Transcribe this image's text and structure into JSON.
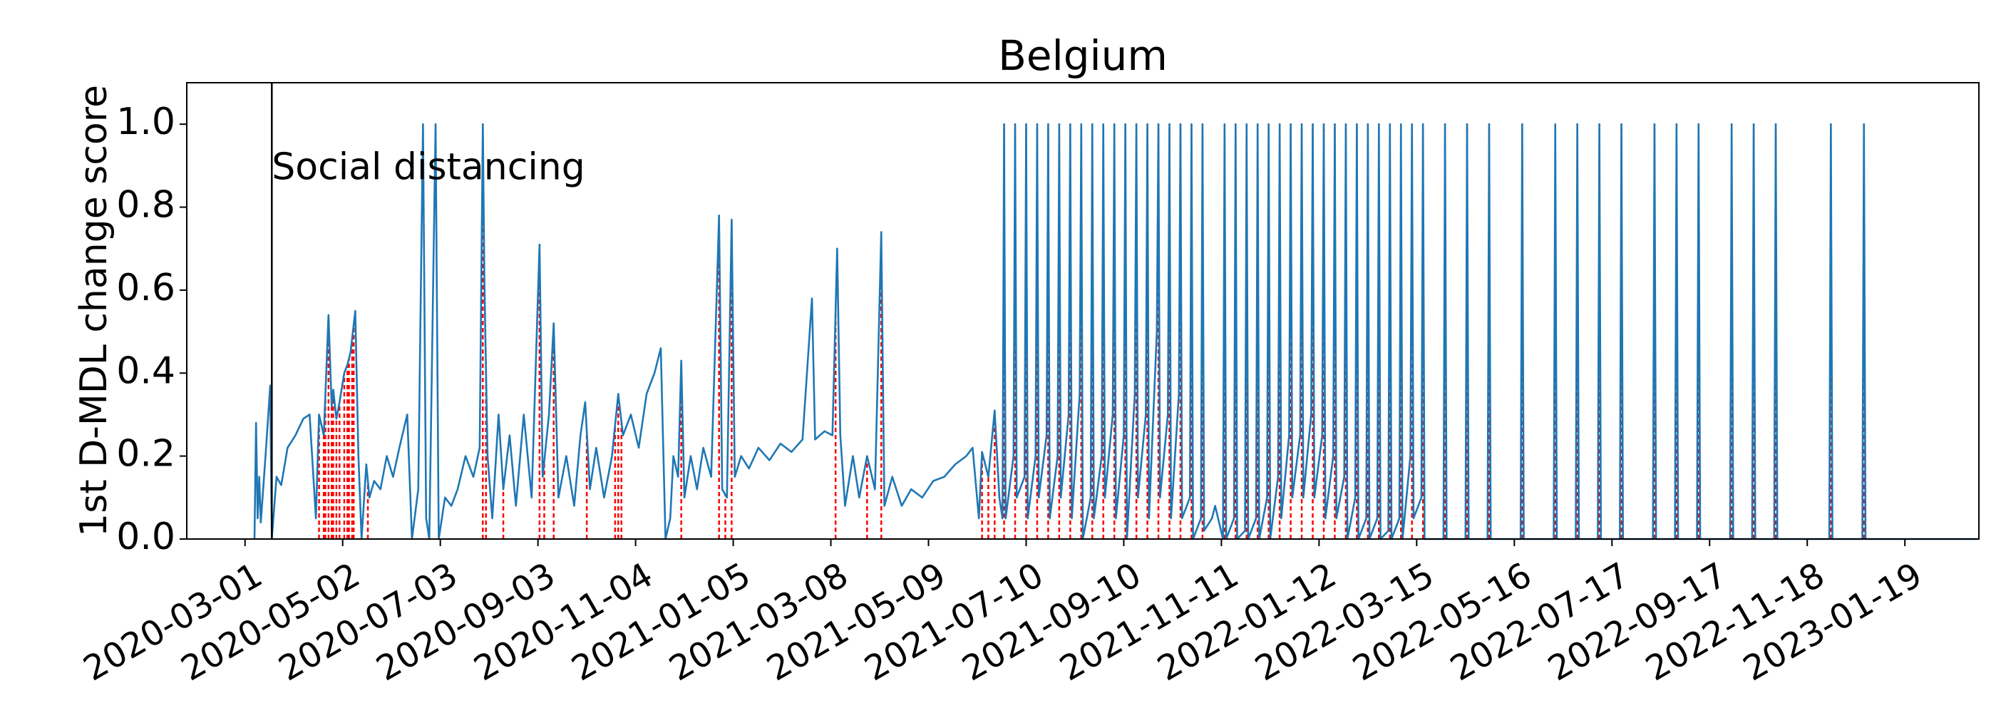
{
  "chart_data": {
    "type": "line",
    "title": "Belgium",
    "y_label": "1st D-MDL change score",
    "color": "#1f77b4",
    "change_point_color": "#ff0000",
    "event_color": "#000000",
    "events": [
      {
        "date": "2020-03-18",
        "label": "Social distancing"
      }
    ],
    "xlim": [
      "2020-01-24",
      "2023-03-07"
    ],
    "xticks": [
      "2020-03-01",
      "2020-05-02",
      "2020-07-03",
      "2020-09-03",
      "2020-11-04",
      "2021-01-05",
      "2021-03-08",
      "2021-05-09",
      "2021-07-10",
      "2021-09-10",
      "2021-11-11",
      "2022-01-12",
      "2022-03-15",
      "2022-05-16",
      "2022-07-17",
      "2022-09-17",
      "2022-11-18",
      "2023-01-19"
    ],
    "ylim": [
      0,
      1.1
    ],
    "yticks": [
      {
        "value": 0,
        "label": "0.0"
      },
      0.2,
      0.4,
      0.6,
      0.8,
      {
        "value": 1,
        "label": "1.0"
      }
    ],
    "x": [
      "2020-03-07",
      "2020-03-08",
      "2020-03-09",
      "2020-03-10",
      "2020-03-11",
      "2020-03-14",
      "2020-03-17",
      "2020-03-18",
      "2020-03-21",
      "2020-03-24",
      "2020-03-28",
      "2020-04-02",
      "2020-04-07",
      "2020-04-11",
      "2020-04-15",
      "2020-04-17",
      "2020-04-20",
      "2020-04-23",
      "2020-04-25",
      "2020-04-26",
      "2020-04-28",
      "2020-04-30",
      "2020-05-03",
      "2020-05-05",
      "2020-05-07",
      "2020-05-10",
      "2020-05-12",
      "2020-05-14",
      "2020-05-17",
      "2020-05-19",
      "2020-05-22",
      "2020-05-26",
      "2020-05-30",
      "2020-06-03",
      "2020-06-07",
      "2020-06-12",
      "2020-06-15",
      "2020-06-19",
      "2020-06-22",
      "2020-06-24",
      "2020-06-26",
      "2020-06-30",
      "2020-07-02",
      "2020-07-06",
      "2020-07-10",
      "2020-07-14",
      "2020-07-19",
      "2020-07-24",
      "2020-07-28",
      "2020-07-30",
      "2020-07-31",
      "2020-08-02",
      "2020-08-05",
      "2020-08-09",
      "2020-08-12",
      "2020-08-16",
      "2020-08-20",
      "2020-08-25",
      "2020-08-30",
      "2020-09-04",
      "2020-09-06",
      "2020-09-10",
      "2020-09-13",
      "2020-09-16",
      "2020-09-21",
      "2020-09-26",
      "2020-09-30",
      "2020-10-03",
      "2020-10-06",
      "2020-10-10",
      "2020-10-15",
      "2020-10-20",
      "2020-10-24",
      "2020-10-27",
      "2020-11-01",
      "2020-11-06",
      "2020-11-11",
      "2020-11-16",
      "2020-11-20",
      "2020-11-23",
      "2020-11-26",
      "2020-11-28",
      "2020-12-01",
      "2020-12-03",
      "2020-12-05",
      "2020-12-09",
      "2020-12-13",
      "2020-12-17",
      "2020-12-22",
      "2020-12-27",
      "2020-12-29",
      "2021-01-01",
      "2021-01-04",
      "2021-01-06",
      "2021-01-10",
      "2021-01-15",
      "2021-01-21",
      "2021-01-28",
      "2021-02-04",
      "2021-02-11",
      "2021-02-18",
      "2021-02-24",
      "2021-02-26",
      "2021-03-04",
      "2021-03-09",
      "2021-03-11",
      "2021-03-12",
      "2021-03-14",
      "2021-03-17",
      "2021-03-22",
      "2021-03-26",
      "2021-03-31",
      "2021-04-05",
      "2021-04-09",
      "2021-04-11",
      "2021-04-16",
      "2021-04-22",
      "2021-04-28",
      "2021-05-05",
      "2021-05-12",
      "2021-05-19",
      "2021-05-26",
      "2021-06-02",
      "2021-06-06",
      "2021-06-10",
      "2021-06-12",
      "2021-06-16",
      "2021-06-20",
      "2021-06-23",
      "2021-06-25",
      "2021-06-26",
      "2021-06-27",
      "2021-07-02",
      "2021-07-03",
      "2021-07-04",
      "2021-07-09",
      "2021-07-10",
      "2021-07-11",
      "2021-07-16",
      "2021-07-17",
      "2021-07-18",
      "2021-07-23",
      "2021-07-24",
      "2021-07-25",
      "2021-07-30",
      "2021-07-31",
      "2021-08-01",
      "2021-08-06",
      "2021-08-07",
      "2021-08-08",
      "2021-08-13",
      "2021-08-14",
      "2021-08-15",
      "2021-08-20",
      "2021-08-21",
      "2021-08-22",
      "2021-08-27",
      "2021-08-28",
      "2021-08-29",
      "2021-09-03",
      "2021-09-04",
      "2021-09-05",
      "2021-09-10",
      "2021-09-11",
      "2021-09-12",
      "2021-09-17",
      "2021-09-18",
      "2021-09-19",
      "2021-09-24",
      "2021-09-25",
      "2021-09-26",
      "2021-10-01",
      "2021-10-02",
      "2021-10-03",
      "2021-10-08",
      "2021-10-09",
      "2021-10-10",
      "2021-10-15",
      "2021-10-16",
      "2021-10-17",
      "2021-10-22",
      "2021-10-23",
      "2021-10-24",
      "2021-10-29",
      "2021-10-30",
      "2021-10-31",
      "2021-11-05",
      "2021-11-07",
      "2021-11-12",
      "2021-11-13",
      "2021-11-14",
      "2021-11-19",
      "2021-11-20",
      "2021-11-21",
      "2021-11-26",
      "2021-11-27",
      "2021-11-28",
      "2021-12-03",
      "2021-12-04",
      "2021-12-05",
      "2021-12-10",
      "2021-12-11",
      "2021-12-12",
      "2021-12-17",
      "2021-12-18",
      "2021-12-19",
      "2021-12-24",
      "2021-12-25",
      "2021-12-26",
      "2021-12-31",
      "2022-01-01",
      "2022-01-02",
      "2022-01-07",
      "2022-01-08",
      "2022-01-09",
      "2022-01-14",
      "2022-01-15",
      "2022-01-16",
      "2022-01-21",
      "2022-01-22",
      "2022-01-23",
      "2022-01-28",
      "2022-01-29",
      "2022-01-30",
      "2022-02-04",
      "2022-02-05",
      "2022-02-06",
      "2022-02-11",
      "2022-02-12",
      "2022-02-13",
      "2022-02-18",
      "2022-02-19",
      "2022-02-20",
      "2022-02-25",
      "2022-02-26",
      "2022-02-27",
      "2022-03-04",
      "2022-03-05",
      "2022-03-06",
      "2022-03-11",
      "2022-03-12",
      "2022-03-13",
      "2022-03-18",
      "2022-03-19",
      "2022-03-20",
      "2022-04-01",
      "2022-04-02",
      "2022-04-03",
      "2022-04-15",
      "2022-04-16",
      "2022-04-17",
      "2022-04-29",
      "2022-04-30",
      "2022-05-01",
      "2022-05-20",
      "2022-05-21",
      "2022-05-22",
      "2022-06-10",
      "2022-06-11",
      "2022-06-12",
      "2022-06-24",
      "2022-06-25",
      "2022-06-26",
      "2022-07-08",
      "2022-07-09",
      "2022-07-10",
      "2022-07-22",
      "2022-07-23",
      "2022-07-24",
      "2022-08-12",
      "2022-08-13",
      "2022-08-14",
      "2022-08-26",
      "2022-08-27",
      "2022-08-28",
      "2022-09-09",
      "2022-09-10",
      "2022-09-11",
      "2022-09-30",
      "2022-10-01",
      "2022-10-02",
      "2022-10-14",
      "2022-10-15",
      "2022-10-16",
      "2022-10-28",
      "2022-10-29",
      "2022-10-30",
      "2022-12-02",
      "2022-12-03",
      "2022-12-04",
      "2022-12-23",
      "2022-12-24",
      "2022-12-25",
      "2023-03-06"
    ],
    "values": [
      0,
      0.28,
      0.05,
      0.15,
      0.04,
      0.2,
      0.37,
      0,
      0.15,
      0.13,
      0.22,
      0.25,
      0.29,
      0.3,
      0.05,
      0.3,
      0.25,
      0.54,
      0.32,
      0.36,
      0.29,
      0.33,
      0.4,
      0.42,
      0.45,
      0.55,
      0.2,
      0,
      0.18,
      0.1,
      0.14,
      0.12,
      0.2,
      0.15,
      0.22,
      0.3,
      0,
      0.12,
      1,
      0.05,
      0,
      1,
      0,
      0.1,
      0.08,
      0.12,
      0.2,
      0.15,
      0.22,
      1,
      0.62,
      0.2,
      0.05,
      0.3,
      0.12,
      0.25,
      0.08,
      0.3,
      0.1,
      0.71,
      0.15,
      0.3,
      0.52,
      0.1,
      0.2,
      0.08,
      0.25,
      0.33,
      0.12,
      0.22,
      0.1,
      0.2,
      0.35,
      0.25,
      0.3,
      0.22,
      0.35,
      0.4,
      0.46,
      0,
      0.05,
      0.2,
      0.15,
      0.43,
      0.1,
      0.2,
      0.12,
      0.22,
      0.15,
      0.78,
      0.12,
      0.1,
      0.77,
      0.15,
      0.2,
      0.17,
      0.22,
      0.19,
      0.23,
      0.21,
      0.24,
      0.58,
      0.24,
      0.26,
      0.25,
      0.55,
      0.7,
      0.25,
      0.08,
      0.2,
      0.1,
      0.2,
      0.12,
      0.74,
      0.08,
      0.15,
      0.08,
      0.12,
      0.1,
      0.14,
      0.15,
      0.18,
      0.2,
      0.22,
      0.05,
      0.21,
      0.15,
      0.31,
      0.1,
      0.05,
      1,
      0.05,
      0.2,
      1,
      0.1,
      0.15,
      1,
      0.05,
      0.2,
      1,
      0.1,
      0.25,
      1,
      0.05,
      0.2,
      1,
      0.1,
      0.3,
      1,
      0.05,
      0.35,
      1,
      0,
      0.1,
      1,
      0.05,
      0.2,
      1,
      0.1,
      0.3,
      1,
      0.05,
      0.25,
      1,
      0,
      0.35,
      1,
      0.1,
      0.3,
      1,
      0.05,
      0.5,
      1,
      0.1,
      0.3,
      1,
      0.05,
      0.35,
      1,
      0.05,
      0.1,
      1,
      0,
      0.05,
      1,
      0.02,
      0.05,
      0.08,
      0,
      1,
      0,
      0.05,
      1,
      0,
      0.02,
      1,
      0,
      0.05,
      1,
      0,
      0.1,
      1,
      0,
      0.15,
      1,
      0.05,
      0.25,
      1,
      0.1,
      0.25,
      1,
      0.1,
      0.3,
      1,
      0.1,
      0.25,
      1,
      0.05,
      0.2,
      1,
      0.05,
      0.15,
      1,
      0,
      0.1,
      1,
      0,
      0.05,
      1,
      0,
      0.05,
      1,
      0,
      0.02,
      1,
      0,
      0.05,
      1,
      0,
      0.2,
      1,
      0.05,
      0.1,
      1,
      0,
      0,
      1,
      0,
      0,
      1,
      0,
      0,
      1,
      0,
      0,
      1,
      0,
      0,
      1,
      0,
      0,
      1,
      0,
      0,
      1,
      0,
      0,
      1,
      0,
      0,
      1,
      0,
      0,
      1,
      0,
      0,
      1,
      0,
      0,
      1,
      0,
      0,
      1,
      0,
      0,
      1,
      0,
      0,
      1,
      0,
      0,
      1,
      0,
      0
    ],
    "change_points": [
      "2020-04-17",
      "2020-04-20",
      "2020-04-21",
      "2020-04-23",
      "2020-04-25",
      "2020-04-26",
      "2020-04-28",
      "2020-04-30",
      "2020-05-03",
      "2020-05-05",
      "2020-05-06",
      "2020-05-08",
      "2020-05-09",
      "2020-05-18",
      "2020-07-30",
      "2020-08-01",
      "2020-08-12",
      "2020-09-04",
      "2020-09-07",
      "2020-09-13",
      "2020-10-04",
      "2020-10-22",
      "2020-10-24",
      "2020-10-26",
      "2020-12-03",
      "2020-12-27",
      "2020-12-31",
      "2021-01-04",
      "2021-03-11",
      "2021-03-31",
      "2021-04-09",
      "2021-06-12",
      "2021-06-16",
      "2021-06-20",
      "2021-06-26",
      "2021-07-03",
      "2021-07-10",
      "2021-07-17",
      "2021-07-24",
      "2021-07-31",
      "2021-08-07",
      "2021-08-14",
      "2021-08-21",
      "2021-08-28",
      "2021-09-04",
      "2021-09-11",
      "2021-09-18",
      "2021-09-25",
      "2021-10-02",
      "2021-10-09",
      "2021-10-16",
      "2021-10-23",
      "2021-10-30",
      "2021-11-13",
      "2021-11-20",
      "2021-11-27",
      "2021-12-04",
      "2021-12-11",
      "2021-12-18",
      "2021-12-25",
      "2022-01-01",
      "2022-01-08",
      "2022-01-15",
      "2022-01-22",
      "2022-01-29",
      "2022-02-05",
      "2022-02-12",
      "2022-02-19",
      "2022-02-26",
      "2022-03-05",
      "2022-03-12",
      "2022-03-19",
      "2022-04-02",
      "2022-04-16",
      "2022-04-30",
      "2022-05-21",
      "2022-06-11",
      "2022-06-25",
      "2022-07-09",
      "2022-07-23",
      "2022-08-13",
      "2022-08-27",
      "2022-09-10",
      "2022-10-01",
      "2022-10-15",
      "2022-10-29",
      "2022-12-03",
      "2022-12-24"
    ]
  }
}
